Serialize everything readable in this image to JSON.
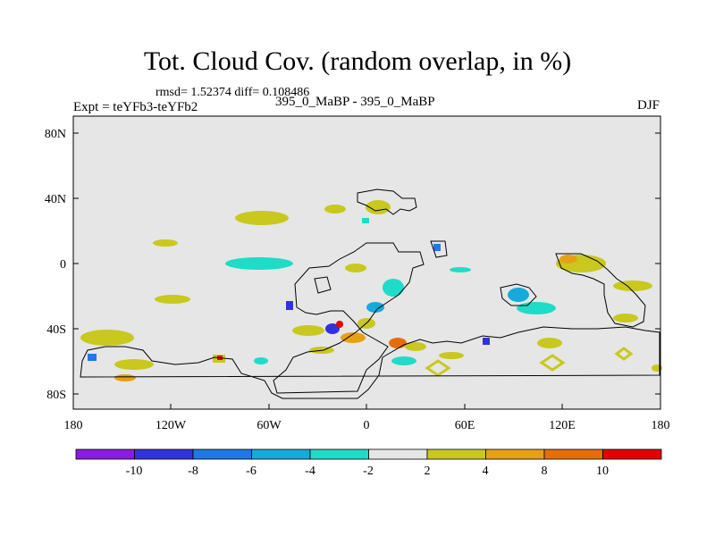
{
  "title": "Tot. Cloud Cov. (random overlap, in %)",
  "stats": "rmsd= 1.52374  diff= 0.108486",
  "experiment": "Expt = teYFb3-teYFb2",
  "case": "395_0_MaBP - 395_0_MaBP",
  "season": "DJF",
  "colors": {
    "background": "#e6e6e6",
    "coast": "#000000",
    "legend": [
      "#8a1ae6",
      "#3232dc",
      "#1e78e6",
      "#14aadc",
      "#1edcc8",
      "#e6e6e6",
      "#c8c81e",
      "#e6a014",
      "#e66e0a",
      "#e60000"
    ]
  },
  "chart_data": {
    "type": "heatmap",
    "title": "Tot. Cloud Cov. (random overlap, in %)",
    "x_axis": {
      "ticks": [
        "180",
        "120W",
        "60W",
        "0",
        "60E",
        "120E",
        "180"
      ],
      "range": [
        -180,
        180
      ]
    },
    "y_axis": {
      "ticks": [
        "80N",
        "40N",
        "0",
        "40S",
        "80S"
      ],
      "range": [
        -90,
        90
      ]
    },
    "colorbar": {
      "levels": [
        "-10",
        "-8",
        "-6",
        "-4",
        "-2",
        "2",
        "4",
        "8",
        "10"
      ]
    }
  }
}
